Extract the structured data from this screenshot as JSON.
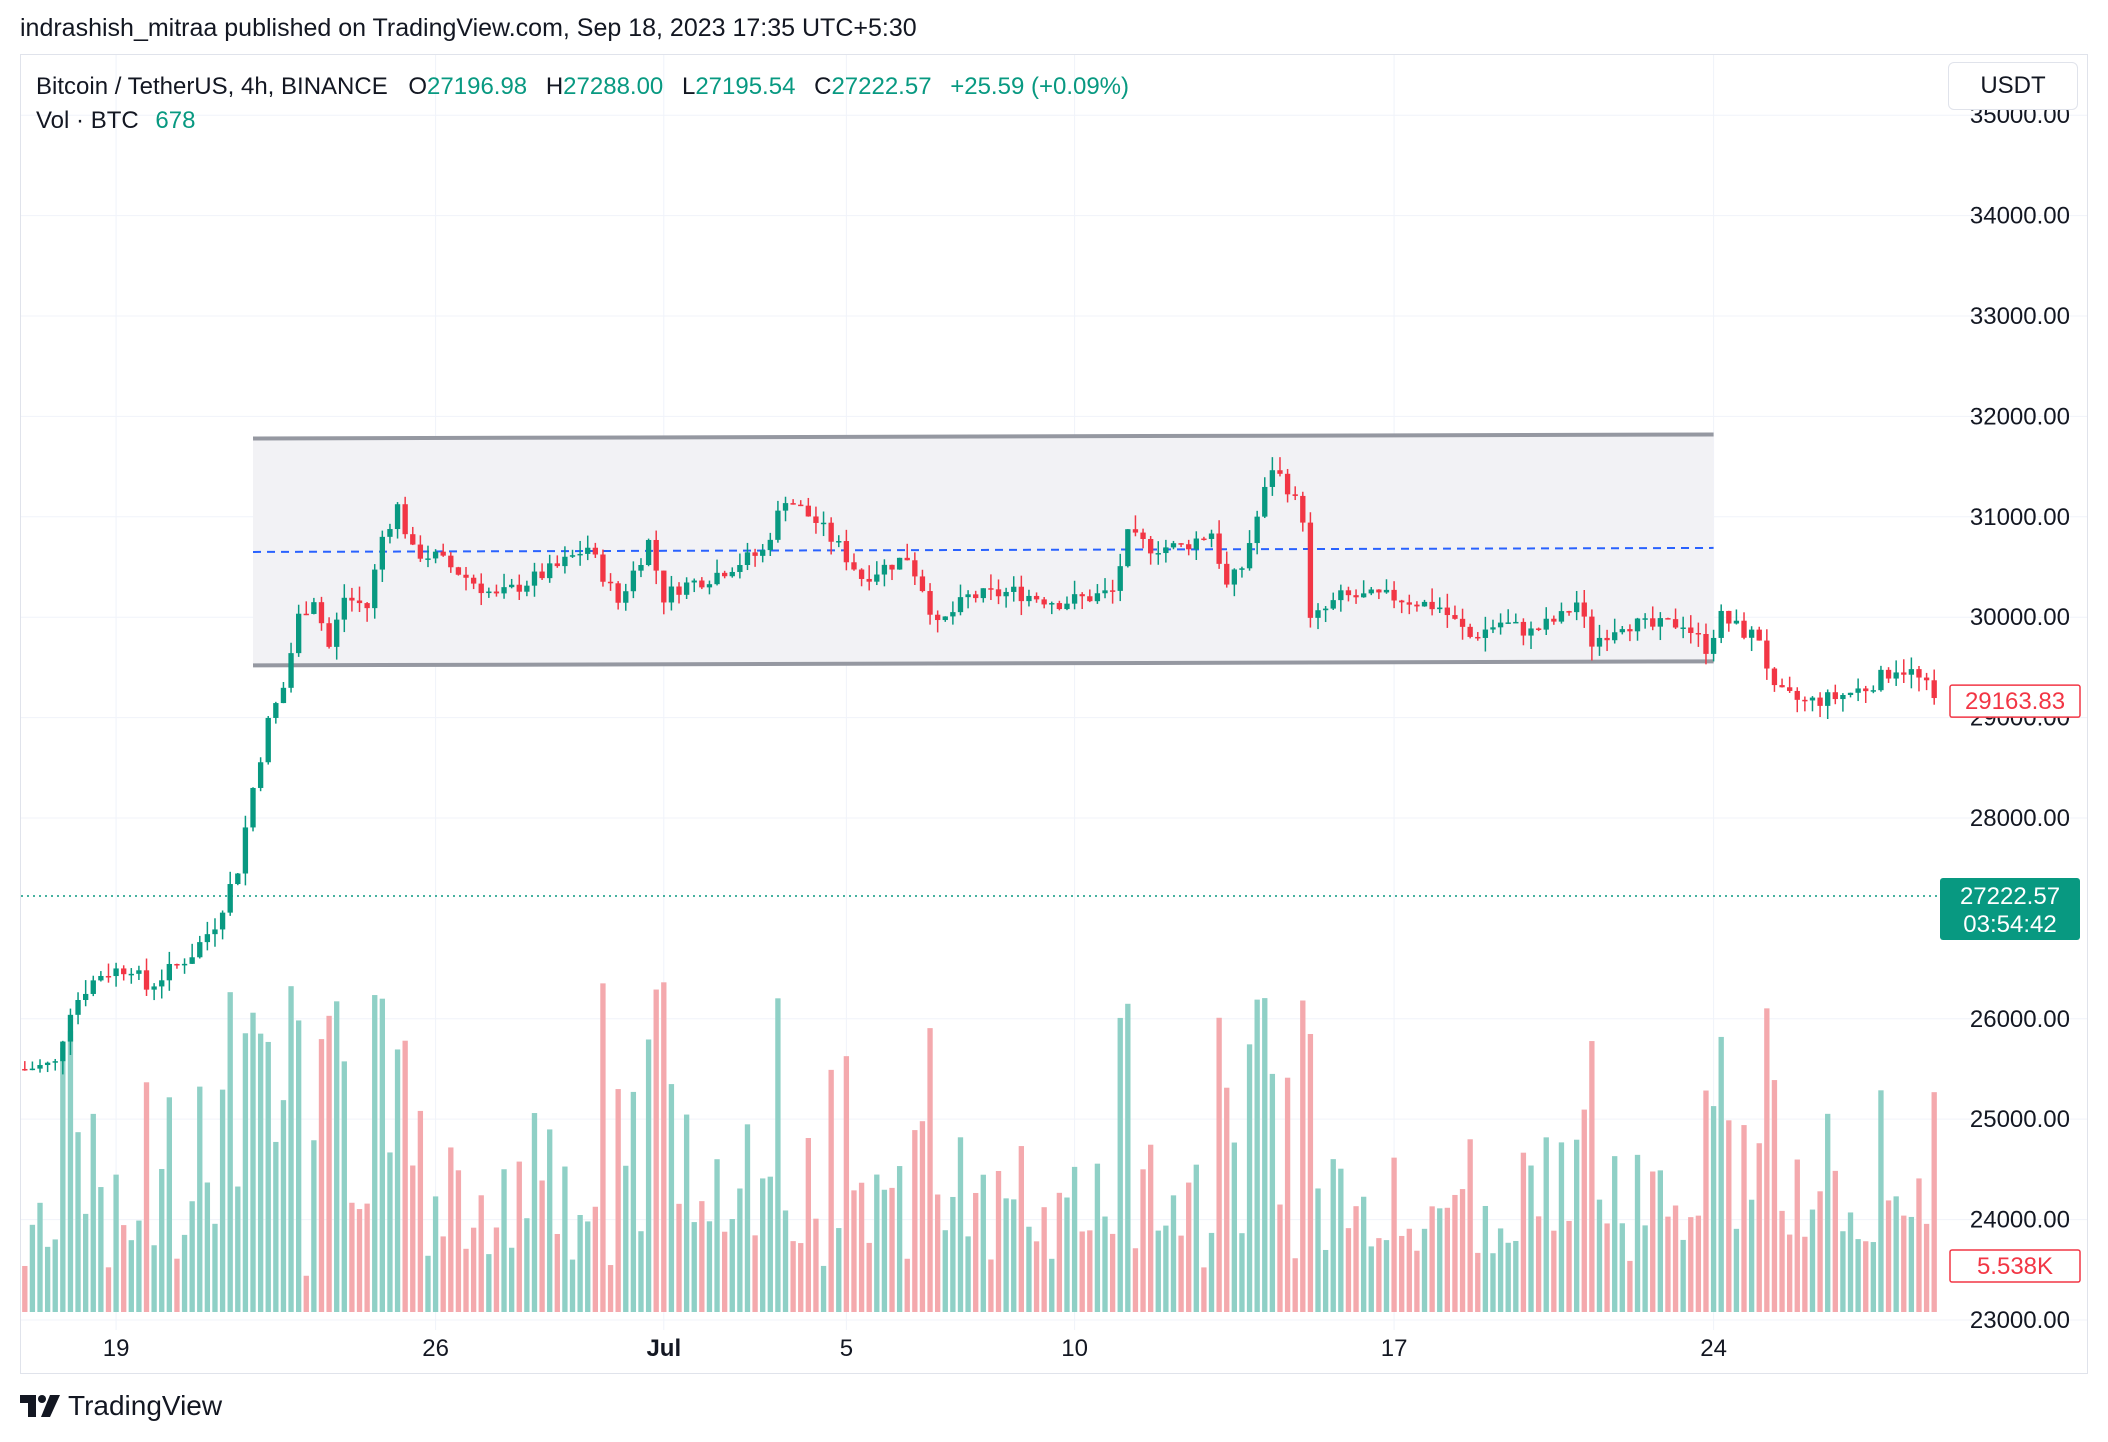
{
  "header": {
    "publisher_line": "indrashish_mitraa published on TradingView.com, Sep 18, 2023 17:35 UTC+5:30"
  },
  "legend": {
    "symbol": "Bitcoin / TetherUS, 4h, BINANCE",
    "open_label": "O",
    "open": "27196.98",
    "high_label": "H",
    "high": "27288.00",
    "low_label": "L",
    "low": "27195.54",
    "close_label": "C",
    "close": "27222.57",
    "change": "+25.59 (+0.09%)",
    "volume_label": "Vol · BTC",
    "volume": "678"
  },
  "currency_button": "USDT",
  "footer": {
    "brand": "TradingView"
  },
  "colors": {
    "up": "#089981",
    "down": "#f23645",
    "up_volume": "#8fd0c6",
    "down_volume": "#f4a9ad",
    "range_box": "#f2f2f5",
    "range_border": "#9598a1",
    "midline": "#2962ff",
    "grid": "#f0f3fa"
  },
  "chart_data": {
    "type": "candlestick",
    "symbol": "BTCUSDT",
    "timeframe": "4h",
    "ylim": [
      22900,
      35600
    ],
    "y_ticks": [
      35000,
      34000,
      33000,
      32000,
      31000,
      30000,
      29000,
      28000,
      26000,
      25000,
      24000,
      23000
    ],
    "y_tick_labels": [
      "35000.00",
      "34000.00",
      "33000.00",
      "32000.00",
      "31000.00",
      "30000.00",
      "29000.00",
      "28000.00",
      "26000.00",
      "25000.00",
      "24000.00",
      "23000.00"
    ],
    "x_ticks": [
      {
        "label": "19",
        "index": 12
      },
      {
        "label": "26",
        "index": 54
      },
      {
        "label": "Jul",
        "index": 84
      },
      {
        "label": "5",
        "index": 108
      },
      {
        "label": "10",
        "index": 138
      },
      {
        "label": "17",
        "index": 180
      },
      {
        "label": "24",
        "index": 222
      }
    ],
    "candle_count": 252,
    "price_path": [
      [
        0,
        25500
      ],
      [
        4,
        25550
      ],
      [
        6,
        26100
      ],
      [
        8,
        26300
      ],
      [
        10,
        26450
      ],
      [
        14,
        26520
      ],
      [
        16,
        26300
      ],
      [
        18,
        26420
      ],
      [
        22,
        26650
      ],
      [
        25,
        26950
      ],
      [
        28,
        27500
      ],
      [
        30,
        28300
      ],
      [
        32,
        28950
      ],
      [
        34,
        29300
      ],
      [
        36,
        30000
      ],
      [
        38,
        30200
      ],
      [
        40,
        29700
      ],
      [
        42,
        30200
      ],
      [
        45,
        30100
      ],
      [
        47,
        30800
      ],
      [
        49,
        31100
      ],
      [
        51,
        30650
      ],
      [
        54,
        30600
      ],
      [
        58,
        30400
      ],
      [
        62,
        30200
      ],
      [
        66,
        30350
      ],
      [
        70,
        30500
      ],
      [
        74,
        30700
      ],
      [
        78,
        30150
      ],
      [
        82,
        30750
      ],
      [
        84,
        30200
      ],
      [
        86,
        30300
      ],
      [
        90,
        30400
      ],
      [
        94,
        30550
      ],
      [
        97,
        30650
      ],
      [
        100,
        31200
      ],
      [
        104,
        30950
      ],
      [
        107,
        30700
      ],
      [
        110,
        30400
      ],
      [
        113,
        30500
      ],
      [
        116,
        30600
      ],
      [
        118,
        30300
      ],
      [
        120,
        29900
      ],
      [
        124,
        30200
      ],
      [
        130,
        30250
      ],
      [
        136,
        30150
      ],
      [
        140,
        30200
      ],
      [
        143,
        30250
      ],
      [
        145,
        30800
      ],
      [
        148,
        30700
      ],
      [
        152,
        30700
      ],
      [
        156,
        30850
      ],
      [
        158,
        30300
      ],
      [
        160,
        30500
      ],
      [
        162,
        31000
      ],
      [
        164,
        31500
      ],
      [
        166,
        31300
      ],
      [
        168,
        31000
      ],
      [
        169,
        29950
      ],
      [
        173,
        30200
      ],
      [
        180,
        30200
      ],
      [
        186,
        30100
      ],
      [
        190,
        29800
      ],
      [
        194,
        29950
      ],
      [
        198,
        29850
      ],
      [
        202,
        30000
      ],
      [
        204,
        30150
      ],
      [
        206,
        29750
      ],
      [
        210,
        29950
      ],
      [
        214,
        29900
      ],
      [
        218,
        29950
      ],
      [
        221,
        29700
      ],
      [
        223,
        30000
      ],
      [
        226,
        29850
      ],
      [
        228,
        29800
      ],
      [
        230,
        29250
      ],
      [
        234,
        29150
      ],
      [
        238,
        29200
      ],
      [
        242,
        29300
      ],
      [
        246,
        29500
      ],
      [
        248,
        29450
      ],
      [
        250,
        29300
      ],
      [
        251,
        29163
      ]
    ],
    "series": [
      {
        "name": "Vol · BTC",
        "last_value": 678
      }
    ],
    "range_box": {
      "upper": {
        "from": {
          "index": 30,
          "price": 31780
        },
        "to": {
          "index": 222,
          "price": 31820
        }
      },
      "lower": {
        "from": {
          "index": 30,
          "price": 29520
        },
        "to": {
          "index": 222,
          "price": 29560
        }
      },
      "midline": {
        "from": {
          "index": 30,
          "price": 30650
        },
        "to": {
          "index": 222,
          "price": 30690
        }
      }
    },
    "markers": {
      "last_price": {
        "value": 27222.57,
        "label": "27222.57",
        "countdown": "03:54:42"
      },
      "series_last": {
        "value": 29163.83,
        "label": "29163.83"
      },
      "volume_marker": {
        "label": "5.538K"
      }
    }
  }
}
